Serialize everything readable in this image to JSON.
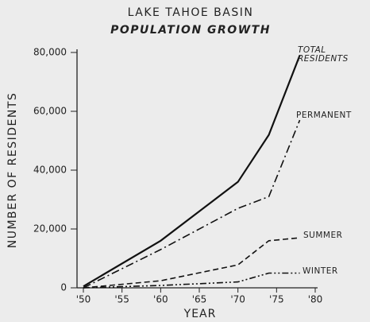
{
  "chart_data": {
    "type": "line",
    "title": "LAKE TAHOE BASIN",
    "subtitle": "POPULATION GROWTH",
    "x_label": "YEAR",
    "y_label": "NUMBER OF RESIDENTS",
    "x": [
      1950,
      1960,
      1970,
      1974,
      1978
    ],
    "series": [
      {
        "name": "TOTAL RESIDENTS",
        "color": "#111111",
        "dash": "none",
        "values": [
          500,
          16000,
          36000,
          52000,
          79000
        ]
      },
      {
        "name": "PERMANENT",
        "color": "#111111",
        "dash": "10 4 2 4",
        "values": [
          0,
          13000,
          27000,
          31000,
          57000
        ]
      },
      {
        "name": "SUMMER",
        "color": "#111111",
        "dash": "7 4",
        "values": [
          0,
          2400,
          7800,
          16000,
          17000
        ]
      },
      {
        "name": "WINTER",
        "color": "#111111",
        "dash": "8 3 2 3 2 3",
        "values": [
          0,
          800,
          2000,
          5000,
          5000
        ]
      }
    ],
    "xlim": [
      1950,
      1980
    ],
    "xticks": [
      {
        "value": 1950,
        "label": "'50"
      },
      {
        "value": 1955,
        "label": "'55"
      },
      {
        "value": 1960,
        "label": "'60"
      },
      {
        "value": 1965,
        "label": "'65"
      },
      {
        "value": 1970,
        "label": "'70"
      },
      {
        "value": 1975,
        "label": "'75"
      },
      {
        "value": 1980,
        "label": "'80"
      }
    ],
    "ylim": [
      0,
      80000
    ],
    "yticks": [
      0,
      {
        "value": 20000,
        "label": "20,000"
      },
      {
        "value": 40000,
        "label": "40,000"
      },
      {
        "value": 60000,
        "label": "60,000"
      },
      {
        "value": 80000,
        "label": "80,000"
      }
    ],
    "grid": false
  }
}
